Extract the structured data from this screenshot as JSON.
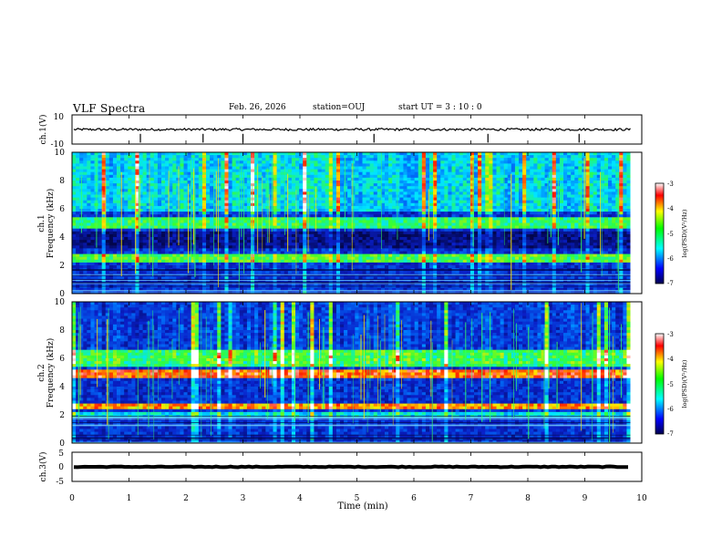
{
  "header": {
    "title": "VLF Spectra",
    "date": "Feb. 26, 2026",
    "station": "station=OUJ",
    "start_ut": "start  UT =   3  : 10 : 0"
  },
  "colors": {
    "spectrogram_base": "#0a1fc8",
    "spectrogram_dark": "#03064d",
    "cyan": "#00e5ff",
    "green": "#33ff33",
    "yellow": "#ffe600",
    "red": "#ff1a00"
  },
  "chart_data": [
    {
      "type": "line",
      "name": "ch1-waveform",
      "ylabel": "ch.1(V)",
      "ylim": [
        -10,
        10
      ],
      "yticks": [
        "10",
        "-10"
      ],
      "xlim": [
        0,
        10
      ],
      "baseline": 0,
      "noise_amplitude": 0.8,
      "spike_times_min": [
        1.2,
        2.3,
        3.0,
        5.3,
        7.3,
        8.9
      ]
    },
    {
      "type": "heatmap",
      "name": "ch1-spectrogram",
      "ylabel": "ch.1\nFrequency  (kHz)",
      "ylabel_lines": [
        "ch.1",
        "Frequency  (kHz)"
      ],
      "ylim": [
        0,
        10
      ],
      "yticks": [
        "0",
        "2",
        "4",
        "6",
        "8",
        "10"
      ],
      "xlim": [
        0,
        9.8
      ],
      "bands_khz": [
        {
          "low": 4.6,
          "high": 5.4,
          "level": 0.55
        },
        {
          "low": 2.2,
          "high": 2.8,
          "level": 0.6
        },
        {
          "low": 5.8,
          "high": 10.0,
          "level": 0.4
        },
        {
          "low": 3.2,
          "high": 4.4,
          "level": 0.1
        }
      ],
      "colorbar": {
        "label": "log(PSD)(V²/Hz)",
        "range": [
          -7,
          -3
        ],
        "ticks": [
          "-3",
          "-4",
          "-5",
          "-6",
          "-7"
        ]
      }
    },
    {
      "type": "heatmap",
      "name": "ch2-spectrogram",
      "ylabel": "ch.2\nFrequency  (kHz)",
      "ylabel_lines": [
        "ch.2",
        "Frequency  (kHz)"
      ],
      "ylim": [
        0,
        10
      ],
      "yticks": [
        "0",
        "2",
        "4",
        "6",
        "8",
        "10"
      ],
      "xlim": [
        0,
        9.8
      ],
      "bands_khz": [
        {
          "low": 4.6,
          "high": 5.3,
          "level": 0.85
        },
        {
          "low": 2.4,
          "high": 2.9,
          "level": 0.8
        },
        {
          "low": 5.5,
          "high": 6.5,
          "level": 0.55
        },
        {
          "low": 1.8,
          "high": 2.2,
          "level": 0.45
        }
      ],
      "colorbar": {
        "label": "log(PSD)(V²/Hz)",
        "range": [
          -7,
          -3
        ],
        "ticks": [
          "-3",
          "-4",
          "-5",
          "-6",
          "-7"
        ]
      }
    },
    {
      "type": "line",
      "name": "ch3-waveform",
      "ylabel": "ch.3(V)",
      "ylim": [
        -5,
        5
      ],
      "yticks": [
        "5",
        "0",
        "-5"
      ],
      "xlim": [
        0,
        10
      ],
      "baseline": 0,
      "noise_amplitude": 0.15,
      "xlabel": "Time  (min)",
      "xticks": [
        "0",
        "1",
        "2",
        "3",
        "4",
        "5",
        "6",
        "7",
        "8",
        "9",
        "10"
      ]
    }
  ]
}
